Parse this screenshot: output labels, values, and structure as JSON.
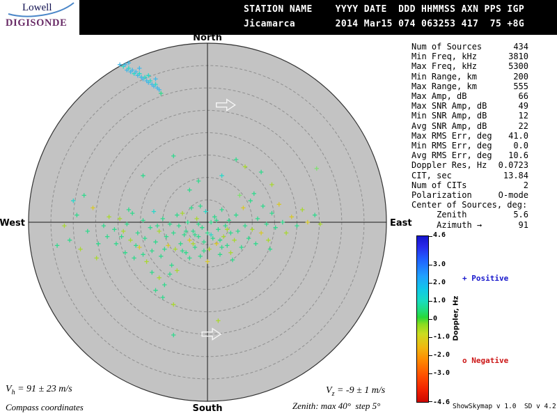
{
  "logo": {
    "name": "Lowell",
    "product": "DIGISONDE"
  },
  "header": {
    "labels_row": "STATION NAME    YYYY DATE  DDD HHMMSS AXN PPS IGP",
    "values_row": "Jicamarca       2014 Mar15 074 063253 417  75 +8G"
  },
  "compass": {
    "north": "North",
    "south": "South",
    "east": "East",
    "west": "West"
  },
  "stats": {
    "rows": [
      {
        "label": "Num of Sources",
        "value": "434"
      },
      {
        "label": "Min Freq, kHz",
        "value": "3810"
      },
      {
        "label": "Max Freq, kHz",
        "value": "5300"
      },
      {
        "label": "Min Range, km",
        "value": "200"
      },
      {
        "label": "Max Range, km",
        "value": "555"
      },
      {
        "label": "Max Amp, dB",
        "value": "66"
      },
      {
        "label": "Max SNR Amp, dB",
        "value": "49"
      },
      {
        "label": "Min SNR Amp, dB",
        "value": "12"
      },
      {
        "label": "Avg SNR Amp, dB",
        "value": "22"
      },
      {
        "label": "Max RMS Err, deg",
        "value": "41.0"
      },
      {
        "label": "Min RMS Err, deg",
        "value": "0.0"
      },
      {
        "label": "Avg RMS Err, deg",
        "value": "10.6"
      },
      {
        "label": "Doppler Res, Hz",
        "value": "0.0723"
      },
      {
        "label": "CIT, sec",
        "value": "13.84"
      },
      {
        "label": "Num of CITs",
        "value": "2"
      },
      {
        "label": "Polarization",
        "value": "O-mode"
      },
      {
        "label": "Center of Sources, deg:",
        "value": ""
      },
      {
        "label": "     Zenith",
        "value": "5.6"
      },
      {
        "label": "     Azimuth →",
        "value": "91"
      }
    ]
  },
  "colorbar": {
    "title": "Doppler, Hz",
    "range": [
      -4.6,
      4.6
    ],
    "ticks": [
      {
        "label": "4.6",
        "pct": 0
      },
      {
        "label": "3.0",
        "pct": 17.4
      },
      {
        "label": "2.0",
        "pct": 28.3
      },
      {
        "label": "1.0",
        "pct": 39.1
      },
      {
        "label": "0",
        "pct": 50
      },
      {
        "label": "-1.0",
        "pct": 60.9
      },
      {
        "label": "-2.0",
        "pct": 71.7
      },
      {
        "label": "-3.0",
        "pct": 82.6
      },
      {
        "label": "-4.6",
        "pct": 100
      }
    ],
    "gradient": [
      "#1414cc 0%",
      "#2828e8 6%",
      "#2060ff 14%",
      "#20a0ff 24%",
      "#10c8e8 32%",
      "#18dcc0 39%",
      "#20dc78 45%",
      "#28d838 49%",
      "#88dc20 53%",
      "#ccdc20 59%",
      "#f0b810 67%",
      "#ff8800 75%",
      "#ff5000 84%",
      "#f02000 93%",
      "#cc0800 100%"
    ],
    "positive_label": "+ Positive",
    "negative_label": "o Negative",
    "positive_color": "#1616cc",
    "negative_color": "#cc1616"
  },
  "footer": {
    "vh": {
      "sym": "V",
      "sub": "h",
      "rest": " = 91 ± 23 m/s"
    },
    "vz": {
      "sym": "V",
      "sub": "z",
      "rest": " = -9 ± 1 m/s"
    },
    "coords_note": "Compass coordinates",
    "zenith_note": "Zenith: max 40°  step 5°",
    "version_note": "ShowSkymap v 1.0  SD v 4.2"
  },
  "chart_data": {
    "type": "scatter",
    "projection": "polar compass skymap",
    "zenith_max_deg": 40,
    "zenith_step_deg": 5,
    "doppler_range_hz": [
      -4.6,
      4.6
    ],
    "num_sources": 434,
    "point_coord_units": "fraction of 40-deg zenith radius; x=east(+), y=south(+)",
    "point_colors": [
      "#2fd98c",
      "#28d8c8",
      "#40b8e8",
      "#a8d830",
      "#d8c828",
      "#80e070"
    ],
    "points": [
      [
        -0.84,
        0.13,
        0
      ],
      [
        -0.8,
        0.02,
        3
      ],
      [
        -0.77,
        0.1,
        0
      ],
      [
        -0.73,
        -0.04,
        0
      ],
      [
        -0.71,
        0.15,
        3
      ],
      [
        -0.67,
        0.05,
        0
      ],
      [
        -0.64,
        -0.08,
        4
      ],
      [
        -0.61,
        0.12,
        0
      ],
      [
        -0.58,
        0.02,
        0
      ],
      [
        -0.75,
        -0.12,
        1
      ],
      [
        -0.69,
        -0.15,
        0
      ],
      [
        -0.62,
        0.2,
        3
      ],
      [
        -0.56,
        0.08,
        0
      ],
      [
        -0.55,
        -0.03,
        3
      ],
      [
        -0.52,
        0.04,
        0
      ],
      [
        -0.51,
        0.12,
        0
      ],
      [
        -0.49,
        -0.02,
        3
      ],
      [
        -0.48,
        0.08,
        0
      ],
      [
        -0.46,
        0.17,
        0
      ],
      [
        -0.45,
        0.01,
        0
      ],
      [
        -0.43,
        0.1,
        3
      ],
      [
        -0.42,
        -0.05,
        0
      ],
      [
        -0.41,
        0.2,
        0
      ],
      [
        -0.39,
        0.06,
        0
      ],
      [
        -0.38,
        0.14,
        4
      ],
      [
        -0.36,
        -0.01,
        0
      ],
      [
        -0.35,
        0.09,
        0
      ],
      [
        -0.34,
        0.22,
        3
      ],
      [
        -0.32,
        0.03,
        0
      ],
      [
        -0.31,
        0.16,
        0
      ],
      [
        -0.3,
        -0.06,
        1
      ],
      [
        -0.29,
        0.11,
        0
      ],
      [
        -0.27,
        0.05,
        3
      ],
      [
        -0.26,
        0.19,
        0
      ],
      [
        -0.25,
        -0.02,
        0
      ],
      [
        -0.23,
        0.08,
        0
      ],
      [
        -0.22,
        0.13,
        4
      ],
      [
        -0.21,
        0.01,
        0
      ],
      [
        -0.2,
        0.24,
        0
      ],
      [
        -0.19,
        0.06,
        0
      ],
      [
        -0.18,
        0.15,
        3
      ],
      [
        -0.17,
        -0.04,
        0
      ],
      [
        -0.47,
        0.05,
        3
      ],
      [
        -0.4,
        0.13,
        0
      ],
      [
        -0.36,
        0.18,
        0
      ],
      [
        -0.44,
        -0.07,
        0
      ],
      [
        -0.24,
        0.15,
        0
      ],
      [
        -0.28,
        0.02,
        0
      ],
      [
        -0.31,
        0.28,
        0
      ],
      [
        -0.27,
        0.31,
        3
      ],
      [
        -0.24,
        0.35,
        0
      ],
      [
        -0.29,
        0.38,
        0
      ],
      [
        -0.21,
        0.29,
        0
      ],
      [
        -0.17,
        0.27,
        3
      ],
      [
        -0.25,
        0.42,
        0
      ],
      [
        -0.19,
        0.46,
        3
      ],
      [
        -0.16,
        0.02,
        0
      ],
      [
        -0.15,
        0.12,
        0
      ],
      [
        -0.14,
        -0.05,
        3
      ],
      [
        -0.13,
        0.07,
        0
      ],
      [
        -0.12,
        0.17,
        0
      ],
      [
        -0.11,
        0.0,
        0
      ],
      [
        -0.1,
        0.1,
        4
      ],
      [
        -0.09,
        -0.08,
        0
      ],
      [
        -0.08,
        0.05,
        0
      ],
      [
        -0.07,
        0.14,
        0
      ],
      [
        -0.06,
        -0.02,
        3
      ],
      [
        -0.05,
        0.08,
        0
      ],
      [
        -0.04,
        0.19,
        0
      ],
      [
        -0.03,
        0.03,
        0
      ],
      [
        -0.02,
        0.11,
        0
      ],
      [
        -0.01,
        -0.06,
        1
      ],
      [
        0.0,
        0.06,
        0
      ],
      [
        0.01,
        0.15,
        3
      ],
      [
        0.02,
        0.0,
        0
      ],
      [
        0.03,
        0.09,
        0
      ],
      [
        0.04,
        -0.03,
        0
      ],
      [
        0.05,
        0.12,
        4
      ],
      [
        0.06,
        0.04,
        0
      ],
      [
        0.07,
        0.18,
        0
      ],
      [
        0.08,
        -0.07,
        0
      ],
      [
        0.09,
        0.08,
        3
      ],
      [
        0.1,
        0.02,
        0
      ],
      [
        0.11,
        0.13,
        0
      ],
      [
        0.12,
        -0.01,
        0
      ],
      [
        0.13,
        0.06,
        0
      ],
      [
        0.14,
        0.21,
        0
      ],
      [
        -0.12,
        0.05,
        0
      ],
      [
        -0.08,
        0.12,
        3
      ],
      [
        -0.05,
        0.01,
        0
      ],
      [
        -0.02,
        0.16,
        0
      ],
      [
        0.02,
        0.07,
        1
      ],
      [
        0.05,
        -0.01,
        0
      ],
      [
        0.08,
        0.14,
        0
      ],
      [
        0.11,
        0.04,
        3
      ],
      [
        -0.1,
        0.2,
        0
      ],
      [
        -0.04,
        -0.09,
        0
      ],
      [
        0.0,
        0.22,
        4
      ],
      [
        0.07,
        0.1,
        0
      ],
      [
        -0.14,
        0.16,
        0
      ],
      [
        0.13,
        0.17,
        3
      ],
      [
        -0.07,
        0.07,
        0
      ],
      [
        0.15,
        0.1,
        3
      ],
      [
        0.16,
        -0.04,
        0
      ],
      [
        0.17,
        0.05,
        0
      ],
      [
        0.19,
        0.14,
        0
      ],
      [
        0.2,
        -0.08,
        4
      ],
      [
        0.21,
        0.02,
        0
      ],
      [
        0.23,
        0.09,
        0
      ],
      [
        0.24,
        -0.12,
        0
      ],
      [
        0.25,
        0.04,
        3
      ],
      [
        0.27,
        0.12,
        0
      ],
      [
        0.28,
        -0.02,
        0
      ],
      [
        0.3,
        0.06,
        4
      ],
      [
        0.31,
        -0.09,
        0
      ],
      [
        0.33,
        0.01,
        0
      ],
      [
        0.34,
        0.1,
        3
      ],
      [
        0.36,
        -0.05,
        0
      ],
      [
        0.38,
        0.03,
        0
      ],
      [
        0.4,
        -0.1,
        4
      ],
      [
        0.42,
        0.0,
        0
      ],
      [
        0.44,
        0.06,
        3
      ],
      [
        0.18,
        -0.15,
        5
      ],
      [
        0.26,
        -0.16,
        0
      ],
      [
        0.35,
        0.15,
        0
      ],
      [
        0.47,
        -0.03,
        4
      ],
      [
        0.5,
        0.02,
        0
      ],
      [
        0.53,
        -0.07,
        3
      ],
      [
        0.56,
        0.0,
        4
      ],
      [
        0.6,
        -0.04,
        0
      ],
      [
        0.63,
        0.01,
        3
      ],
      [
        0.16,
        -0.35,
        0
      ],
      [
        0.21,
        -0.31,
        3
      ],
      [
        0.61,
        -0.3,
        5
      ],
      [
        -0.19,
        -0.37,
        0
      ],
      [
        0.08,
        -0.26,
        1
      ],
      [
        -0.05,
        -0.23,
        0
      ],
      [
        0.36,
        -0.21,
        3
      ],
      [
        -0.36,
        -0.26,
        0
      ],
      [
        -0.1,
        -0.18,
        0
      ],
      [
        0.3,
        -0.28,
        0
      ],
      [
        -0.19,
        0.63,
        0
      ],
      [
        0.06,
        0.55,
        3
      ],
      [
        -0.49,
        -0.88,
        2
      ],
      [
        -0.47,
        -0.87,
        1
      ],
      [
        -0.46,
        -0.88,
        2
      ],
      [
        -0.45,
        -0.85,
        2
      ],
      [
        -0.44,
        -0.86,
        1
      ],
      [
        -0.43,
        -0.84,
        2
      ],
      [
        -0.42,
        -0.85,
        2
      ],
      [
        -0.41,
        -0.83,
        1
      ],
      [
        -0.4,
        -0.84,
        2
      ],
      [
        -0.39,
        -0.82,
        2
      ],
      [
        -0.38,
        -0.83,
        1
      ],
      [
        -0.37,
        -0.81,
        2
      ],
      [
        -0.36,
        -0.8,
        2
      ],
      [
        -0.35,
        -0.81,
        1
      ],
      [
        -0.34,
        -0.79,
        2
      ],
      [
        -0.33,
        -0.78,
        2
      ],
      [
        -0.32,
        -0.79,
        1
      ],
      [
        -0.31,
        -0.77,
        2
      ],
      [
        -0.3,
        -0.76,
        2
      ],
      [
        -0.29,
        -0.77,
        1
      ],
      [
        -0.28,
        -0.75,
        2
      ],
      [
        -0.27,
        -0.74,
        2
      ],
      [
        -0.44,
        -0.89,
        2
      ],
      [
        -0.38,
        -0.86,
        2
      ],
      [
        -0.33,
        -0.82,
        1
      ],
      [
        -0.29,
        -0.8,
        2
      ],
      [
        -0.26,
        -0.72,
        0
      ]
    ],
    "arrows": [
      {
        "x": 0.1,
        "y": -0.655
      },
      {
        "x": 0.02,
        "y": 0.625
      }
    ]
  }
}
